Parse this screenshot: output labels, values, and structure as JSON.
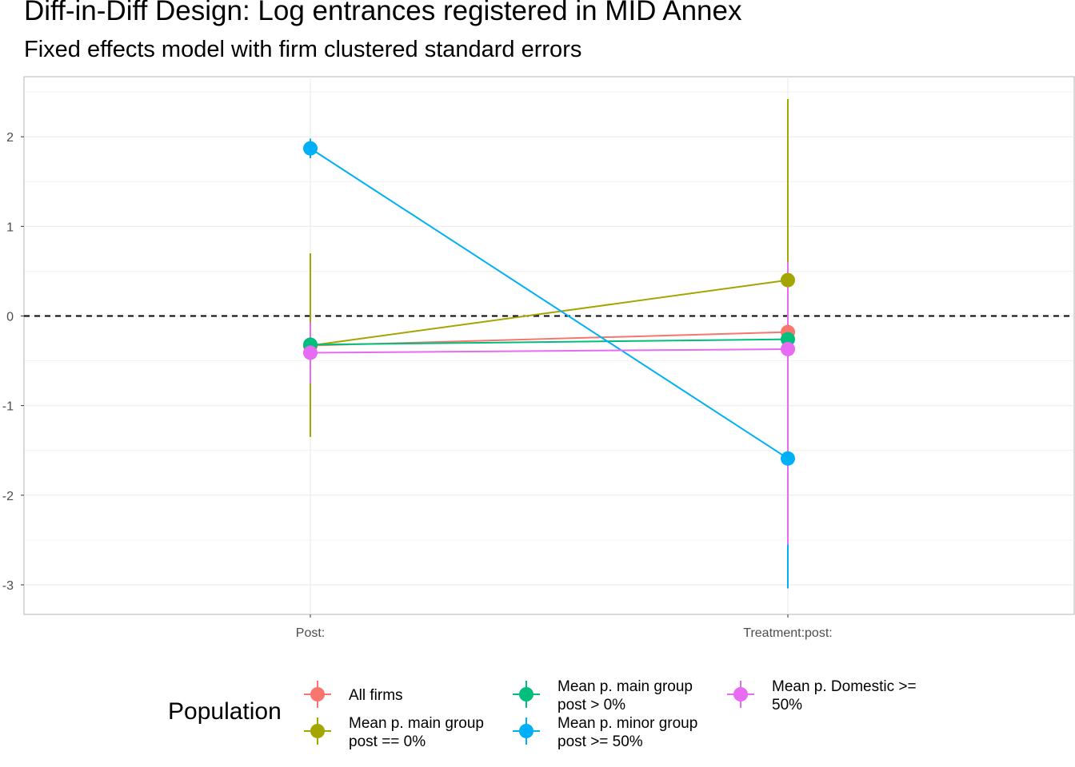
{
  "chart_data": {
    "type": "scatter",
    "title": "Diff-in-Diff Design: Log entrances registered in MID Annex",
    "subtitle": "Fixed effects model with firm clustered standard errors",
    "xlabel": "",
    "ylabel": "",
    "categories": [
      "Post:",
      "Treatment:post:"
    ],
    "ylim": [
      -3.33,
      2.67
    ],
    "y_ticks": [
      -3,
      -2,
      -1,
      0,
      1,
      2
    ],
    "reference_line": 0,
    "grid": true,
    "legend": {
      "title": "Population",
      "placement": "bottom"
    },
    "series": [
      {
        "name": "All firms",
        "color": "#F8766D",
        "values": [
          -0.33,
          -0.18
        ],
        "lower": [
          -0.45,
          -0.34
        ],
        "upper": [
          -0.21,
          -0.02
        ]
      },
      {
        "name": "Mean p. main group\npost == 0%",
        "color": "#A3A500",
        "values": [
          -0.33,
          0.4
        ],
        "lower": [
          -1.35,
          -1.62
        ],
        "upper": [
          0.7,
          2.42
        ]
      },
      {
        "name": "Mean p. main group\npost > 0%",
        "color": "#00BF7D",
        "values": [
          -0.32,
          -0.26
        ],
        "lower": [
          -0.44,
          -0.4
        ],
        "upper": [
          -0.2,
          -0.12
        ]
      },
      {
        "name": "Mean p. minor group\npost >= 50%",
        "color": "#00B0F6",
        "values": [
          1.87,
          -1.59
        ],
        "lower": [
          1.76,
          -3.04
        ],
        "upper": [
          1.98,
          -0.14
        ]
      },
      {
        "name": "Mean p. Domestic >=\n50%",
        "color": "#E76BF3",
        "values": [
          -0.41,
          -0.37
        ],
        "lower": [
          -0.75,
          -2.55
        ],
        "upper": [
          -0.07,
          0.6
        ]
      }
    ]
  }
}
